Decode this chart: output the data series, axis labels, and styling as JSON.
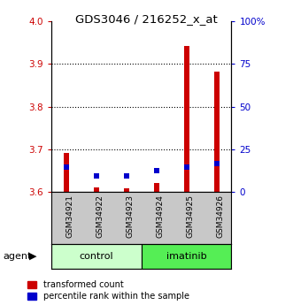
{
  "title": "GDS3046 / 216252_x_at",
  "categories": [
    "GSM34921",
    "GSM34922",
    "GSM34923",
    "GSM34924",
    "GSM34925",
    "GSM34926"
  ],
  "red_values": [
    3.691,
    3.612,
    3.609,
    3.622,
    3.942,
    3.883
  ],
  "blue_values": [
    14.5,
    9.5,
    9.5,
    12.5,
    14.5,
    16.5
  ],
  "ylim_left": [
    3.6,
    4.0
  ],
  "ylim_right": [
    0,
    100
  ],
  "yticks_left": [
    3.6,
    3.7,
    3.8,
    3.9,
    4.0
  ],
  "yticks_right": [
    0,
    25,
    50,
    75,
    100
  ],
  "ytick_labels_right": [
    "0",
    "25",
    "50",
    "75",
    "100%"
  ],
  "bar_base": 3.6,
  "red_color": "#cc0000",
  "blue_color": "#0000cc",
  "bar_bg_color": "#c8c8c8",
  "control_color": "#ccffcc",
  "imatinib_color": "#55ee55",
  "left_tick_color": "#cc0000",
  "right_tick_color": "#0000cc",
  "legend_items": [
    "transformed count",
    "percentile rank within the sample"
  ],
  "group_boundaries": [
    [
      0,
      3,
      "control"
    ],
    [
      3,
      6,
      "imatinib"
    ]
  ]
}
